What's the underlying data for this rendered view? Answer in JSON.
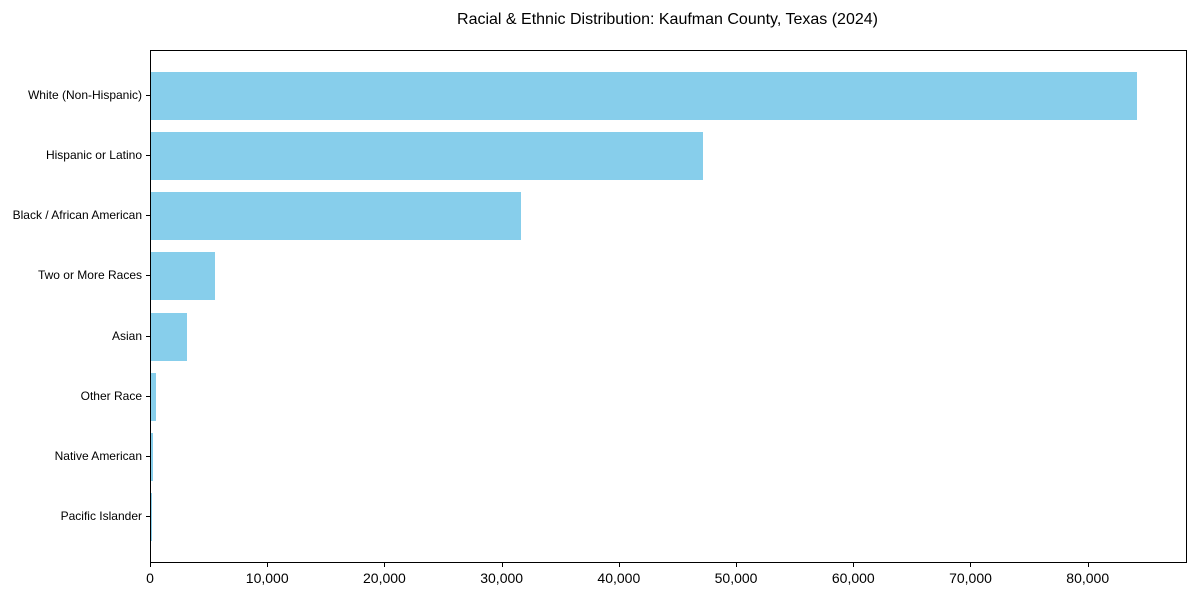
{
  "title": "Racial & Ethnic Distribution: Kaufman County, Texas (2024)",
  "chart_data": {
    "type": "bar",
    "orientation": "horizontal",
    "title": "Racial & Ethnic Distribution: Kaufman County, Texas (2024)",
    "categories": [
      "White (Non-Hispanic)",
      "Hispanic or Latino",
      "Black / African American",
      "Two or More Races",
      "Asian",
      "Other Race",
      "Native American",
      "Pacific Islander"
    ],
    "values": [
      84100,
      47100,
      31600,
      5500,
      3100,
      400,
      200,
      40
    ],
    "xlabel": "",
    "ylabel": "",
    "xlim": [
      0,
      88300
    ],
    "x_ticks": [
      0,
      10000,
      20000,
      30000,
      40000,
      50000,
      60000,
      70000,
      80000
    ],
    "x_tick_labels": [
      "0",
      "10,000",
      "20,000",
      "30,000",
      "40,000",
      "50,000",
      "60,000",
      "70,000",
      "80,000"
    ],
    "grid": false,
    "legend_position": "none",
    "bar_relative_height": 0.8
  },
  "colors": {
    "bar": "#87CEEB",
    "spine": "#000000",
    "text": "#000000",
    "background": "#ffffff"
  }
}
